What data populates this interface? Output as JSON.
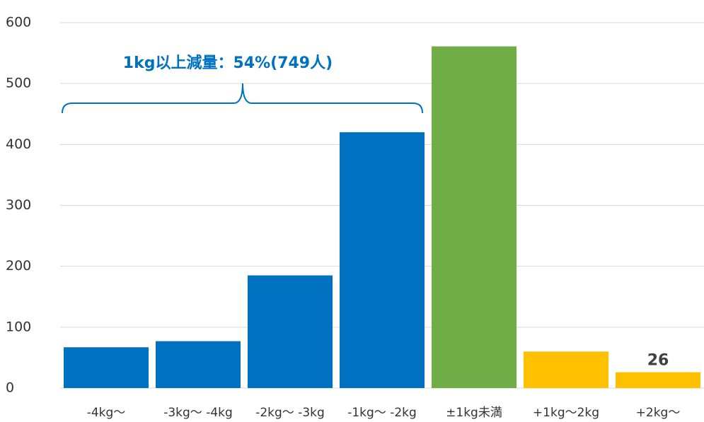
{
  "chart_data": {
    "type": "bar",
    "annotation": "1kg以上減量：54%(749人)",
    "categories": [
      "-4kg～",
      "-3kg～ -4kg",
      "-2kg～ -3kg",
      "-1kg～ -2kg",
      "±1kg未満",
      "+1kg～2kg",
      "+2kg～"
    ],
    "values": [
      67,
      77,
      185,
      420,
      561,
      60,
      26
    ],
    "colors": [
      "#0070c0",
      "#0070c0",
      "#0070c0",
      "#0070c0",
      "#70ad47",
      "#ffc000",
      "#ffc000"
    ],
    "ylim": [
      0,
      600
    ],
    "yticks": [
      0,
      100,
      200,
      300,
      400,
      500,
      600
    ],
    "grid": true
  }
}
